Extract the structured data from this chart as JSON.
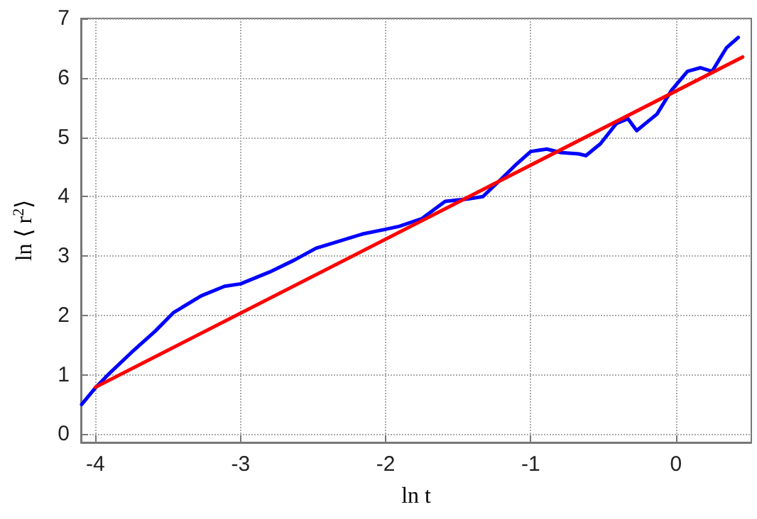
{
  "chart_data": {
    "type": "line",
    "xlabel": "ln t",
    "ylabel": "ln ⟨ r$^{2}$⟩",
    "xlim": [
      -4.1,
      0.52
    ],
    "ylim": [
      -0.14,
      7
    ],
    "xticks": [
      -4,
      -3,
      -2,
      -1,
      0
    ],
    "yticks": [
      0,
      1,
      2,
      3,
      4,
      5,
      6,
      7
    ],
    "grid": true,
    "marker": "none",
    "series": [
      {
        "color": "#0000ff",
        "x": [
          -4.095,
          -4.0,
          -3.905,
          -3.75,
          -3.59,
          -3.46,
          -3.27,
          -3.11,
          -3.0,
          -2.8,
          -2.63,
          -2.48,
          -2.32,
          -2.16,
          -2.0,
          -1.905,
          -1.75,
          -1.59,
          -1.43,
          -1.33,
          -1.21,
          -1.11,
          -1.0,
          -0.89,
          -0.79,
          -0.67,
          -0.62,
          -0.52,
          -0.41,
          -0.33,
          -0.27,
          -0.19,
          -0.13,
          -0.03,
          0.08,
          0.17,
          0.25,
          0.35,
          0.43
        ],
        "values": [
          0.5,
          0.78,
          1.02,
          1.38,
          1.73,
          2.05,
          2.33,
          2.49,
          2.53,
          2.73,
          2.93,
          3.13,
          3.25,
          3.37,
          3.45,
          3.5,
          3.63,
          3.92,
          3.96,
          4.0,
          4.28,
          4.52,
          4.76,
          4.8,
          4.74,
          4.72,
          4.69,
          4.89,
          5.23,
          5.31,
          5.11,
          5.27,
          5.39,
          5.79,
          6.11,
          6.17,
          6.11,
          6.51,
          6.68
        ]
      },
      {
        "color": "#ff0000",
        "x": [
          -4.0,
          0.46
        ],
        "values": [
          0.79,
          6.35
        ]
      }
    ]
  }
}
